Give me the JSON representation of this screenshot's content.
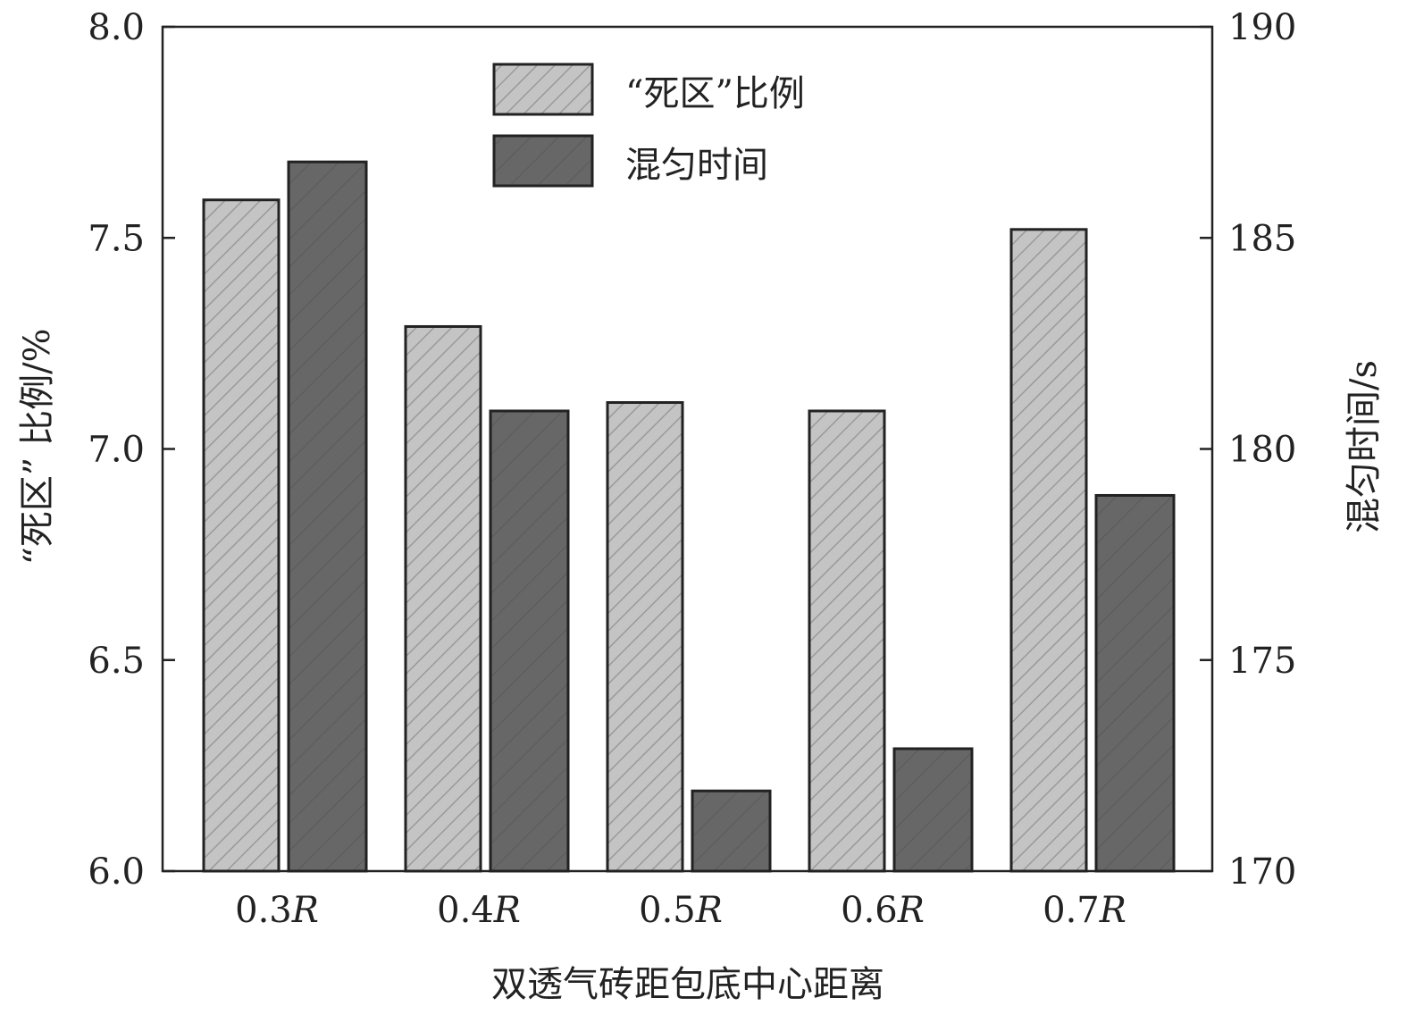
{
  "chart_data": {
    "type": "bar",
    "xlabel": "双透气砖距包底中心距离",
    "categories": [
      "0.3R",
      "0.4R",
      "0.5R",
      "0.6R",
      "0.7R"
    ],
    "category_parts": [
      [
        "0.3",
        "R"
      ],
      [
        "0.4",
        "R"
      ],
      [
        "0.5",
        "R"
      ],
      [
        "0.6",
        "R"
      ],
      [
        "0.7",
        "R"
      ]
    ],
    "series": [
      {
        "name": "“死区”比例",
        "axis": "left",
        "values": [
          7.59,
          7.29,
          7.11,
          7.09,
          7.52
        ],
        "color": "#c4c4c4",
        "hatch": true
      },
      {
        "name": "混匀时间",
        "axis": "right",
        "values": [
          186.8,
          180.9,
          171.9,
          172.9,
          178.9
        ],
        "color": "#666666",
        "hatch": true
      }
    ],
    "ylabel_left": "“死区” 比例/%",
    "ylabel_right": "混匀时间/s",
    "ylim_left": [
      6.0,
      8.0
    ],
    "ylim_right": [
      170,
      190
    ],
    "yticks_left": [
      "6.0",
      "6.5",
      "7.0",
      "7.5",
      "8.0"
    ],
    "yticks_right": [
      "170",
      "175",
      "180",
      "185",
      "190"
    ],
    "legend_position": "top-center",
    "grid": false
  }
}
